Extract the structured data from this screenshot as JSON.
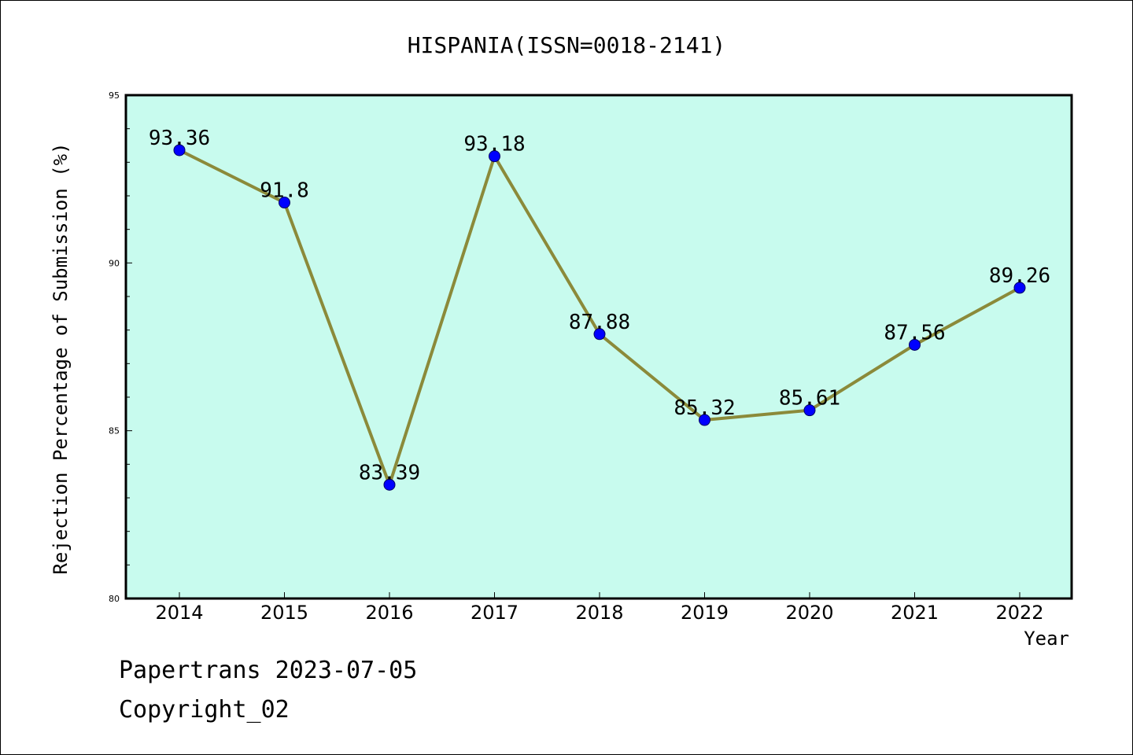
{
  "chart_data": {
    "type": "line",
    "title": "HISPANIA(ISSN=0018-2141)",
    "xlabel": "Year",
    "ylabel": "Rejection Percentage of Submission (%)",
    "categories": [
      "2014",
      "2015",
      "2016",
      "2017",
      "2018",
      "2019",
      "2020",
      "2021",
      "2022"
    ],
    "series": [
      {
        "values": [
          93.36,
          91.8,
          83.39,
          93.18,
          87.88,
          85.32,
          85.61,
          87.56,
          89.26
        ],
        "labels": [
          "93.36",
          "91.8",
          "83.39",
          "93.18",
          "87.88",
          "85.32",
          "85.61",
          "87.56",
          "89.26"
        ]
      }
    ],
    "ylim": [
      80,
      95
    ],
    "yticks": [
      "80",
      "85",
      "90",
      "95"
    ],
    "grid": false,
    "colors": {
      "plot_background": "#c8fbee",
      "line": "#8b8a3a",
      "marker": "#0000ff",
      "axes": "#000000"
    }
  },
  "footer": {
    "date_line": "Papertrans 2023-07-05",
    "copyright_line": "Copyright_02"
  }
}
